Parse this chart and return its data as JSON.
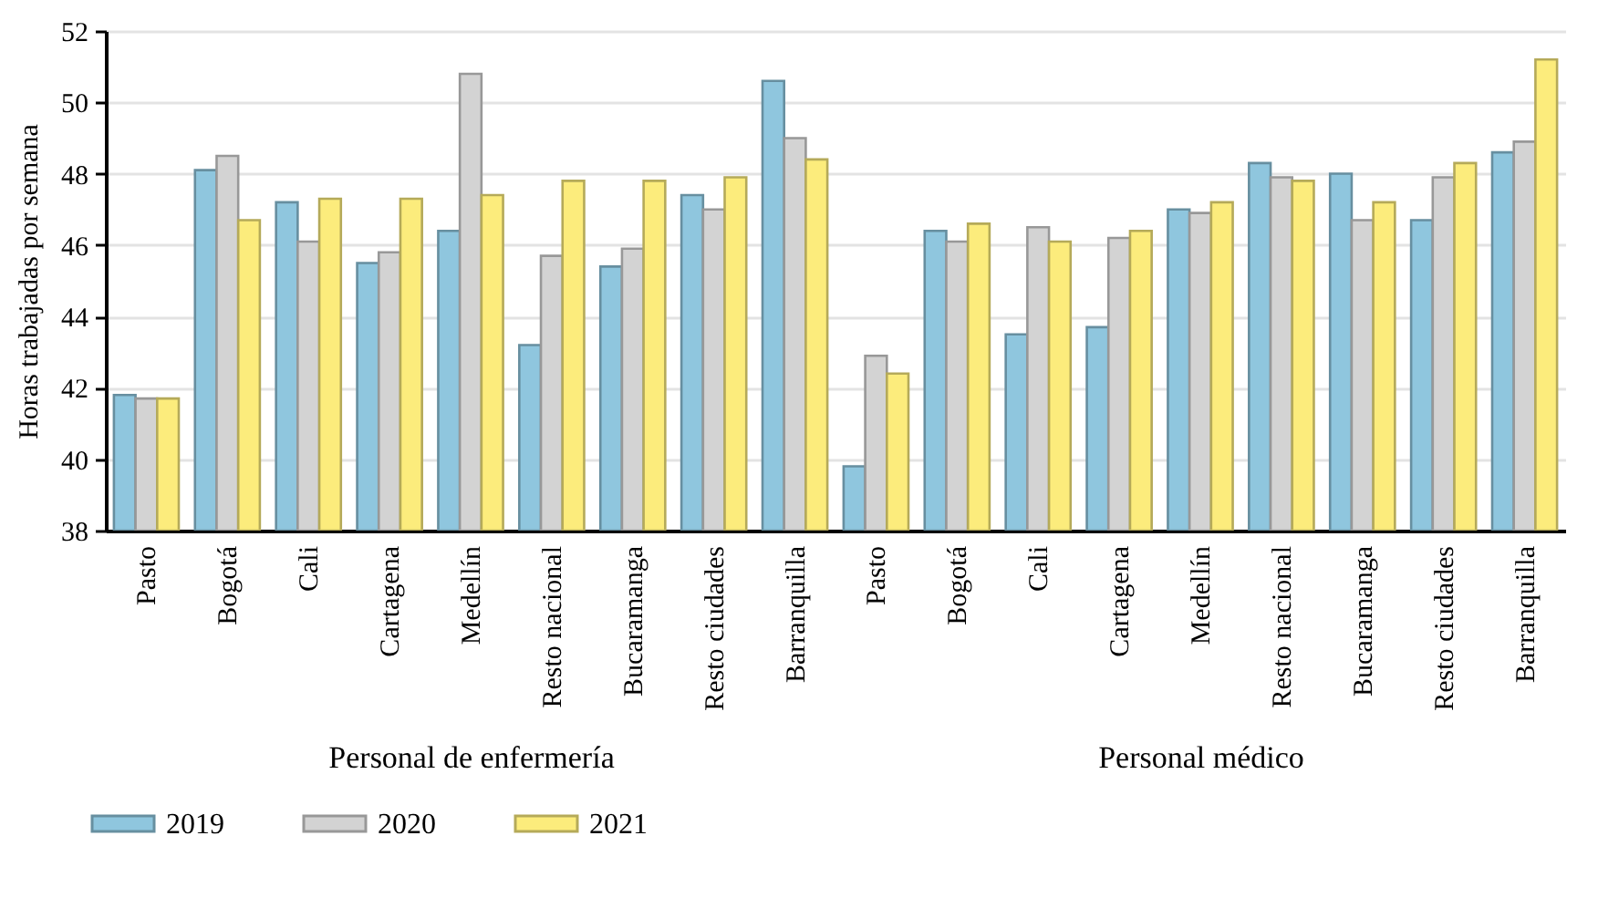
{
  "chart_data": [
    {
      "type": "bar",
      "xlabel": "Personal de enfermería",
      "ylabel": "Horas trabajadas por semana",
      "categories": [
        "Pasto",
        "Bogotá",
        "Cali",
        "Cartagena",
        "Medellín",
        "Resto nacional",
        "Bucaramanga",
        "Resto ciudades",
        "Barranquilla"
      ],
      "series": [
        {
          "name": "2019",
          "color": "#8fc6de",
          "values": [
            41.8,
            48.1,
            47.2,
            45.5,
            46.4,
            43.2,
            45.4,
            47.4,
            50.6
          ]
        },
        {
          "name": "2020",
          "color": "#d3d3d3",
          "values": [
            41.7,
            48.5,
            46.1,
            45.8,
            50.8,
            45.7,
            45.9,
            47.0,
            49.0
          ]
        },
        {
          "name": "2021",
          "color": "#fcec7c",
          "values": [
            41.7,
            46.7,
            47.3,
            47.3,
            47.4,
            47.8,
            47.8,
            47.9,
            48.4
          ]
        }
      ],
      "ylim": [
        38,
        52
      ],
      "yticks": [
        38,
        40,
        42,
        44,
        46,
        48,
        50,
        52
      ],
      "grid": "y",
      "legend": "bottom"
    },
    {
      "type": "bar",
      "xlabel": "Personal médico",
      "categories": [
        "Pasto",
        "Bogotá",
        "Cali",
        "Cartagena",
        "Medellín",
        "Resto nacional",
        "Bucaramanga",
        "Resto ciudades",
        "Barranquilla"
      ],
      "series": [
        {
          "name": "2019",
          "color": "#8fc6de",
          "values": [
            39.8,
            46.4,
            43.5,
            43.7,
            47.0,
            48.3,
            48.0,
            46.7,
            48.6
          ]
        },
        {
          "name": "2020",
          "color": "#d3d3d3",
          "values": [
            42.9,
            46.1,
            46.5,
            46.2,
            46.9,
            47.9,
            46.7,
            47.9,
            48.9
          ]
        },
        {
          "name": "2021",
          "color": "#fcec7c",
          "values": [
            42.4,
            46.6,
            46.1,
            46.4,
            47.2,
            47.8,
            47.2,
            48.3,
            51.2
          ]
        }
      ],
      "ylim": [
        38,
        52
      ],
      "yticks": [
        38,
        40,
        42,
        44,
        46,
        48,
        50,
        52
      ],
      "grid": "y",
      "legend": "bottom",
      "tick_labels": "x"
    }
  ]
}
